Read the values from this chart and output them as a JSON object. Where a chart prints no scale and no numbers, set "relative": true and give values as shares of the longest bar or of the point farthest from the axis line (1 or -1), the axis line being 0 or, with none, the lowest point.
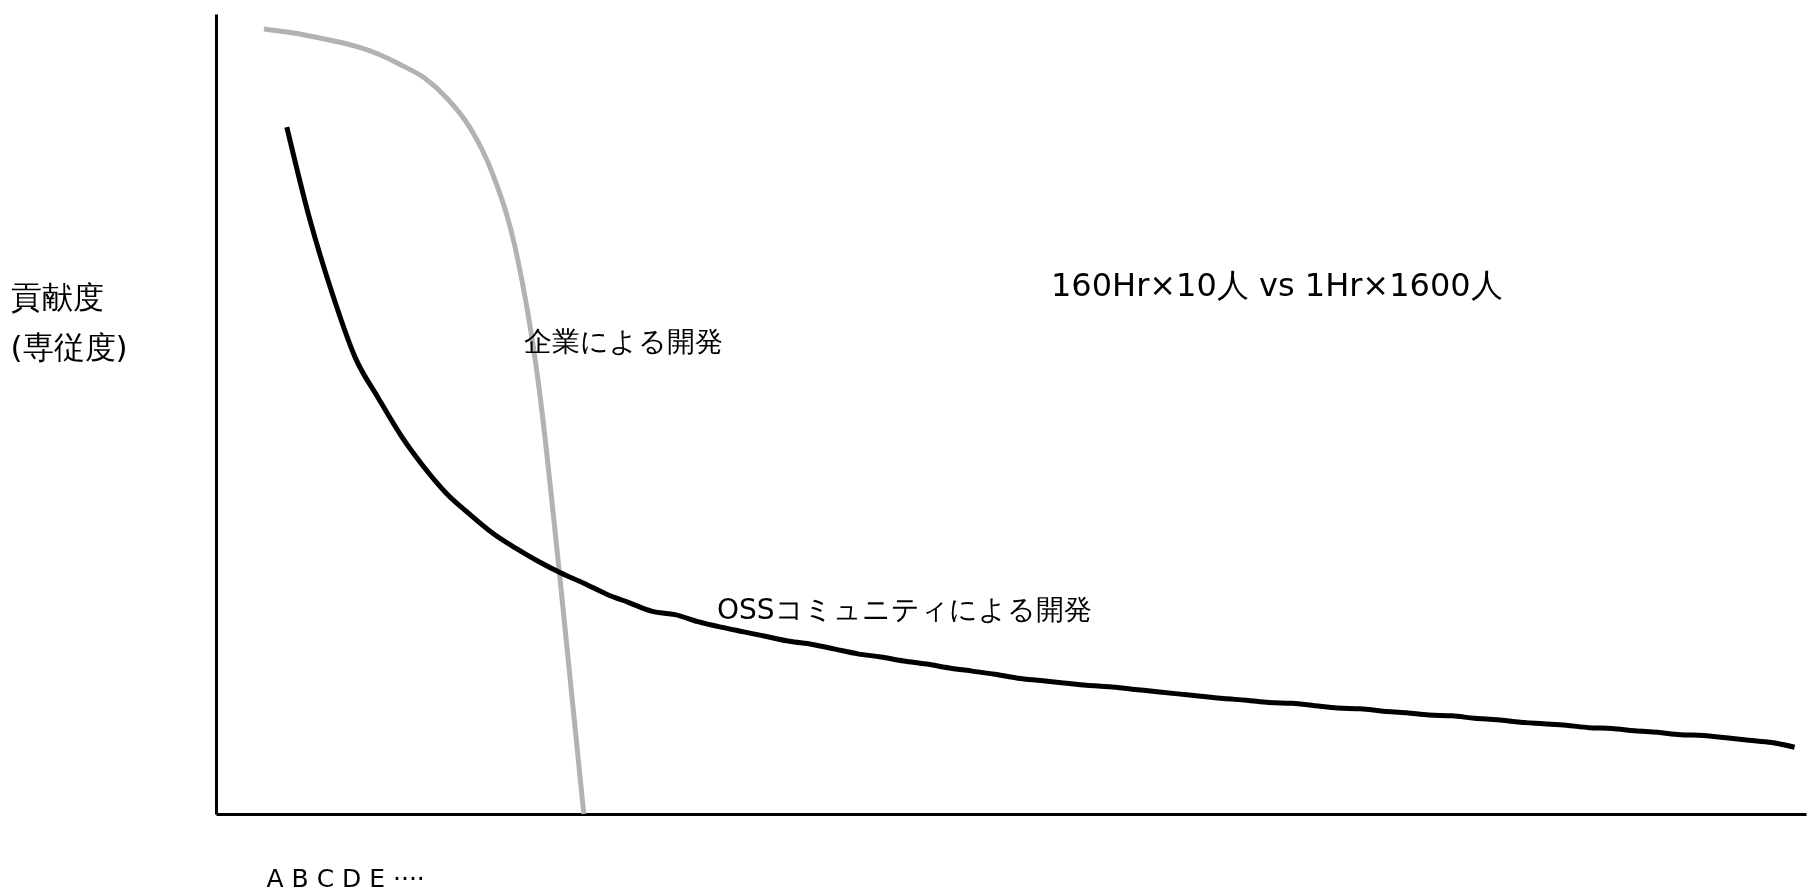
{
  "chart_data": {
    "type": "line",
    "relative": true,
    "xlabel": "A B C D E ····",
    "ylabel": "貢献度\n(専従度)",
    "categories": [
      null,
      null,
      null,
      null,
      null,
      null,
      null,
      null,
      null,
      null,
      null,
      null,
      null,
      null,
      null,
      null,
      null,
      null,
      null,
      null,
      null,
      null,
      null,
      null,
      null,
      null,
      null,
      null,
      null,
      null,
      null,
      null,
      null,
      null,
      null,
      null,
      null,
      null,
      null,
      null,
      null,
      null,
      null,
      null,
      null,
      null,
      null,
      null,
      null,
      null,
      null,
      null,
      null,
      null,
      null,
      null,
      null,
      null,
      null,
      null,
      null,
      null,
      null,
      null,
      null,
      null,
      null,
      null
    ],
    "series": [
      {
        "name": "企業による開発",
        "color": "#b2b2b2",
        "values": [
          1.0,
          0.996,
          0.991,
          0.985,
          0.978,
          0.968,
          0.954,
          0.938,
          0.912,
          0.875,
          0.816,
          0.721,
          0.552,
          0.288,
          0,
          null,
          null,
          null,
          null,
          null,
          null,
          null,
          null,
          null,
          null,
          null,
          null,
          null,
          null,
          null,
          null,
          null,
          null,
          null,
          null,
          null,
          null,
          null,
          null,
          null,
          null,
          null,
          null,
          null,
          null,
          null,
          null,
          null,
          null,
          null,
          null,
          null,
          null,
          null,
          null,
          null,
          null,
          null,
          null,
          null,
          null,
          null,
          null,
          null,
          null,
          null,
          null,
          null
        ]
      },
      {
        "name": "OSSコミュニティによる開発",
        "color": "#000000",
        "values": [
          null,
          0.875,
          0.758,
          0.662,
          0.581,
          0.53,
          0.482,
          0.442,
          0.408,
          0.382,
          0.358,
          0.339,
          0.322,
          0.307,
          0.294,
          0.28,
          0.269,
          0.258,
          0.254,
          0.245,
          0.238,
          0.232,
          0.226,
          0.22,
          0.216,
          0.21,
          0.204,
          0.2,
          0.195,
          0.191,
          0.186,
          0.182,
          0.178,
          0.173,
          0.17,
          0.167,
          0.164,
          0.162,
          0.159,
          0.156,
          0.153,
          0.15,
          0.147,
          0.145,
          0.142,
          0.141,
          0.138,
          0.135,
          0.134,
          0.131,
          0.129,
          0.126,
          0.125,
          0.122,
          0.12,
          0.117,
          0.115,
          0.113,
          0.11,
          0.109,
          0.106,
          0.104,
          0.101,
          0.1,
          0.097,
          0.094,
          0.091,
          0.085
        ]
      }
    ],
    "annotations": [
      "160Hr×10人 vs 1Hr×1600人"
    ],
    "grid": false,
    "line_style": "solid",
    "marker": "none"
  }
}
